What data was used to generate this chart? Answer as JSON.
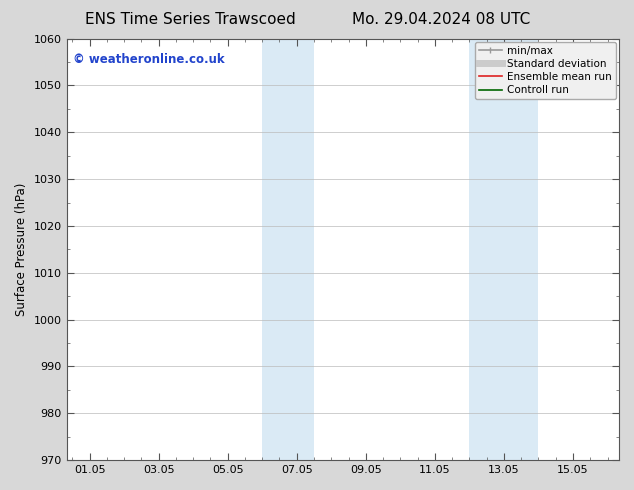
{
  "title_left": "ENS Time Series Trawscoed",
  "title_right": "Mo. 29.04.2024 08 UTC",
  "ylabel": "Surface Pressure (hPa)",
  "xlim_start": 29.333,
  "xlim_end": 45.333,
  "ylim_bottom": 970,
  "ylim_top": 1060,
  "yticks": [
    970,
    980,
    990,
    1000,
    1010,
    1020,
    1030,
    1040,
    1050,
    1060
  ],
  "xtick_major_positions": [
    30,
    32,
    34,
    36,
    38,
    40,
    42,
    44
  ],
  "xtick_major_labels": [
    "01.05",
    "03.05",
    "05.05",
    "07.05",
    "09.05",
    "11.05",
    "13.05",
    "15.05"
  ],
  "shaded_bands": [
    {
      "x_start": 35.0,
      "x_end": 36.5,
      "color": "#daeaf5"
    },
    {
      "x_start": 41.0,
      "x_end": 43.0,
      "color": "#daeaf5"
    }
  ],
  "watermark_text": "© weatheronline.co.uk",
  "watermark_color": "#2244cc",
  "watermark_fontsize": 8.5,
  "legend_entries": [
    {
      "label": "min/max",
      "color": "#999999",
      "lw": 1.2
    },
    {
      "label": "Standard deviation",
      "color": "#cccccc",
      "lw": 5
    },
    {
      "label": "Ensemble mean run",
      "color": "#dd2222",
      "lw": 1.2
    },
    {
      "label": "Controll run",
      "color": "#006600",
      "lw": 1.2
    }
  ],
  "bg_color": "#d8d8d8",
  "plot_bg_color": "#ffffff",
  "grid_color": "#bbbbbb",
  "title_fontsize": 11,
  "tick_fontsize": 8,
  "ylabel_fontsize": 8.5,
  "legend_fontsize": 7.5
}
